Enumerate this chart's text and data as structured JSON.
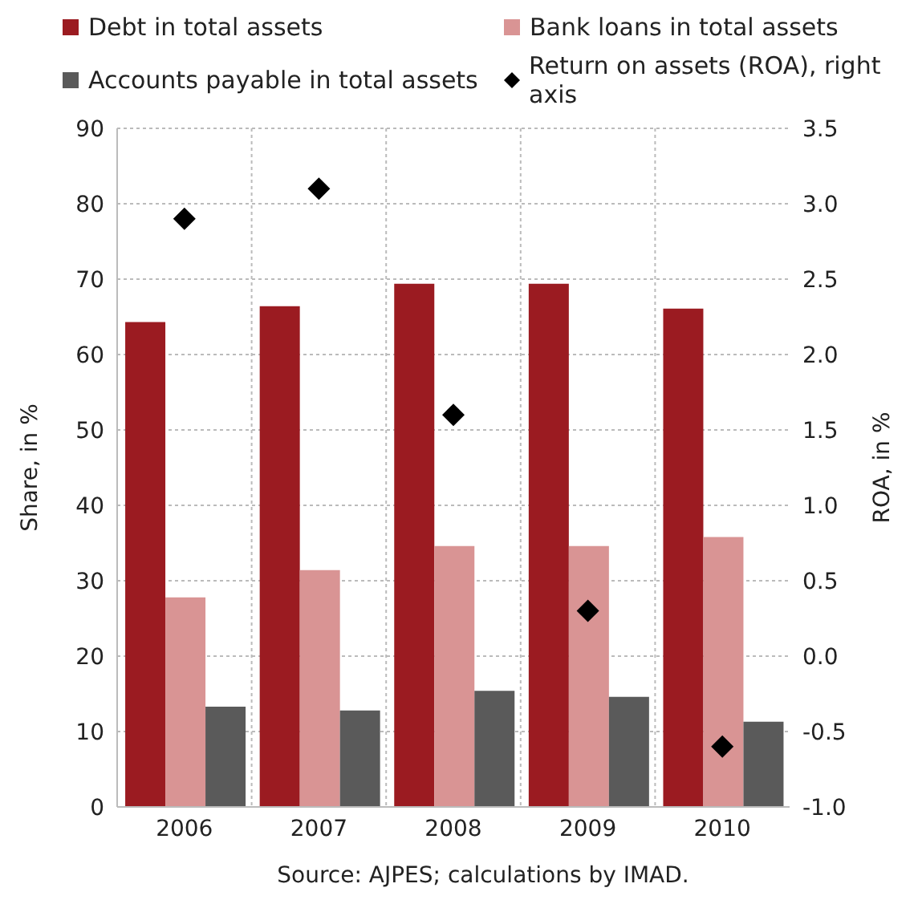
{
  "chart_data": {
    "type": "bar",
    "categories": [
      "2006",
      "2007",
      "2008",
      "2009",
      "2010"
    ],
    "series": [
      {
        "name": "Debt in total assets",
        "color": "#9b1b21",
        "values": [
          64.3,
          66.4,
          69.4,
          69.4,
          66.1
        ]
      },
      {
        "name": "Bank loans in total assets",
        "color": "#d99494",
        "values": [
          27.8,
          31.4,
          34.6,
          34.6,
          35.8
        ]
      },
      {
        "name": "Accounts payable in total assets",
        "color": "#5a5a5a",
        "values": [
          13.3,
          12.8,
          15.4,
          14.6,
          11.3
        ]
      },
      {
        "name": "Return on assets (ROA), right axis",
        "type": "scatter",
        "axis": "y2",
        "marker": "diamond",
        "color": "#000000",
        "values": [
          2.9,
          3.1,
          1.6,
          0.3,
          -0.6
        ]
      }
    ],
    "ylabel": "Share, in %",
    "y2label": "ROA, in %",
    "ylim": [
      0,
      90
    ],
    "yticks": [
      0,
      10,
      20,
      30,
      40,
      50,
      60,
      70,
      80,
      90
    ],
    "y2lim": [
      -1.0,
      3.5
    ],
    "y2ticks": [
      {
        "value": -1,
        "label": "-1.0"
      },
      {
        "value": -0.5,
        "label": "-0.5"
      },
      {
        "value": 0,
        "label": "0.0"
      },
      {
        "value": 0.5,
        "label": "0.5"
      },
      {
        "value": 1,
        "label": "1.0"
      },
      {
        "value": 1.5,
        "label": "1.5"
      },
      {
        "value": 2,
        "label": "2.0"
      },
      {
        "value": 2.5,
        "label": "2.5"
      },
      {
        "value": 3,
        "label": "3.0"
      },
      {
        "value": 3.5,
        "label": "3.5"
      }
    ],
    "grid": true,
    "legend": "top",
    "annotations": [
      "Source: AJPES; calculations by IMAD."
    ]
  }
}
